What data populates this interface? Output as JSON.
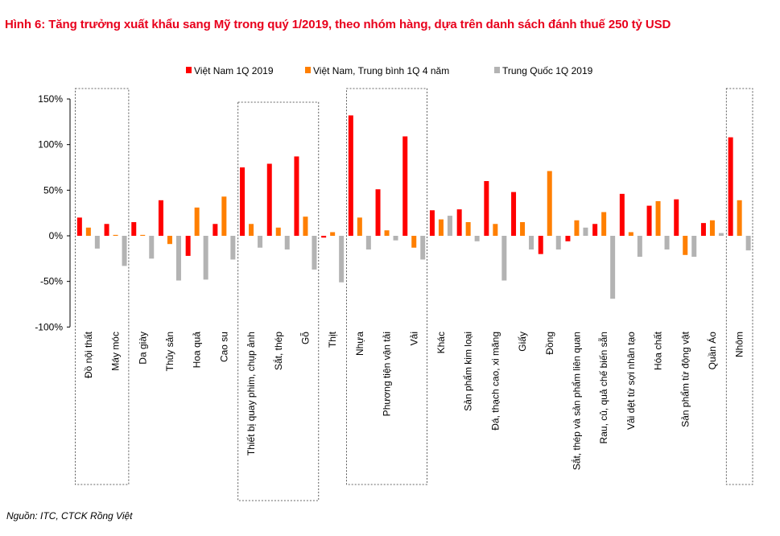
{
  "title": "Hình 6: Tăng trưởng xuất khẩu sang Mỹ trong quý 1/2019, theo nhóm hàng, dựa trên danh sách đánh thuế 250 tỷ USD",
  "source": "Nguồn: ITC, CTCK Rồng Việt",
  "chart_data": {
    "type": "bar",
    "ylim": [
      -100,
      150
    ],
    "yticks": [
      150,
      100,
      50,
      0,
      -50,
      -100
    ],
    "ytick_labels": [
      "150%",
      "100%",
      "50%",
      "0%",
      "-50%",
      "-100%"
    ],
    "categories": [
      "Đồ nội thất",
      "Máy móc",
      "Da giày",
      "Thủy sản",
      "Hoa quả",
      "Cao su",
      "Thiết bị quay phim, chụp ảnh",
      "Sắt, thép",
      "Gỗ",
      "Thịt",
      "Nhựa",
      "Phương tiện vận tải",
      "Vải",
      "Khác",
      "Sản phẩm kim loại",
      "Đá, thạch cao, xi măng",
      "Giấy",
      "Đồng",
      "Sắt, thép và sản phẩm liên quan",
      "Rau, củ, quả chế biến sẵn",
      "Vải dệt từ sợi nhân tạo",
      "Hóa chất",
      "Sản phẩm từ động vật",
      "Quần Áo",
      "Nhôm"
    ],
    "series": [
      {
        "name": "Việt Nam 1Q 2019",
        "color": "#ff0000",
        "values": [
          20,
          13,
          15,
          39,
          -22,
          13,
          75,
          79,
          87,
          -2,
          132,
          51,
          109,
          28,
          29,
          60,
          48,
          -20,
          -6,
          13,
          46,
          33,
          40,
          14,
          108
        ]
      },
      {
        "name": "Việt Nam, Trung bình 1Q 4 năm",
        "color": "#ff7f00",
        "values": [
          9,
          1,
          1,
          -9,
          31,
          43,
          13,
          9,
          21,
          4,
          20,
          6,
          -13,
          18,
          15,
          13,
          15,
          71,
          17,
          26,
          4,
          38,
          -21,
          17,
          39
        ]
      },
      {
        "name": "Trung Quốc 1Q 2019",
        "color": "#b3b3b3",
        "values": [
          -14,
          -33,
          -25,
          -49,
          -48,
          -26,
          -13,
          -15,
          -37,
          -51,
          -15,
          -5,
          -26,
          22,
          -6,
          -49,
          -15,
          -15,
          9,
          -69,
          -23,
          -15,
          -23,
          3,
          -16
        ]
      }
    ],
    "highlight_groups": [
      [
        0,
        1
      ],
      [
        6,
        8
      ],
      [
        10,
        12
      ],
      [
        24,
        24
      ]
    ],
    "legend_position": "top-center",
    "grid": false
  }
}
